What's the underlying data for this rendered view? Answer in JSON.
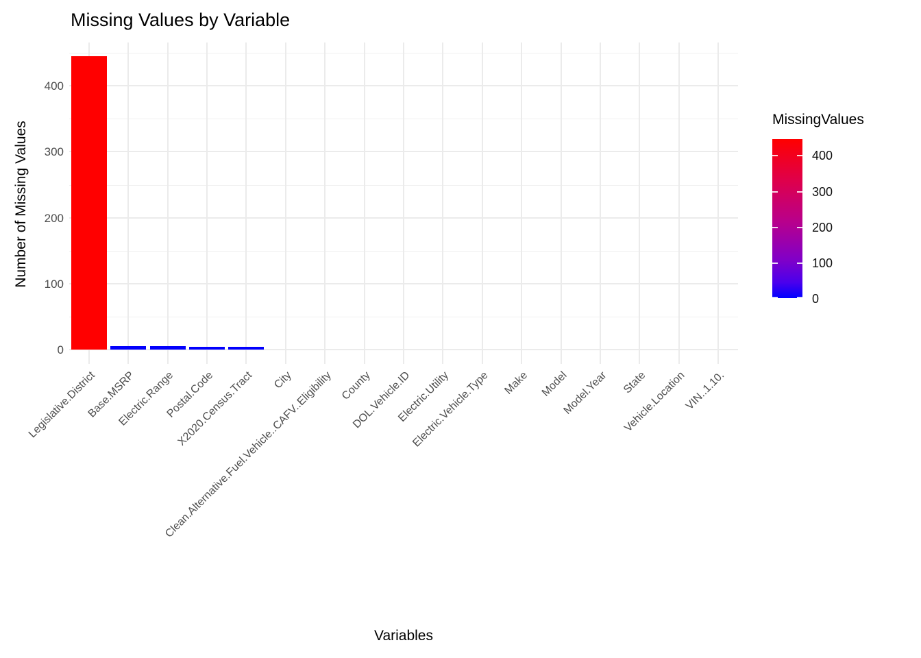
{
  "title": "Missing Values by Variable",
  "axes": {
    "x_title": "Variables",
    "y_title": "Number of Missing Values",
    "y_tick_labels": [
      "0",
      "100",
      "200",
      "300",
      "400"
    ]
  },
  "legend": {
    "title": "MissingValues",
    "tick_labels": [
      "400",
      "300",
      "200",
      "100",
      "0"
    ],
    "tick_values": [
      400,
      300,
      200,
      100,
      0
    ],
    "gradient_high_color": "#FF0000",
    "gradient_low_color": "#0000FF",
    "position": "right"
  },
  "colors": {
    "bar_high": "#FF0000",
    "bar_low": "#0000FF",
    "grid_major": "#EBEBEB",
    "grid_minor": "#F0F0F0",
    "axis_text": "#4D4D4D",
    "title_text": "#000000",
    "background": "#FFFFFF"
  },
  "chart_data": {
    "type": "bar",
    "title": "Missing Values by Variable",
    "xlabel": "Variables",
    "ylabel": "Number of Missing Values",
    "legend_title": "MissingValues",
    "legend_position": "right",
    "grid": true,
    "ylim": [
      0,
      467
    ],
    "yticks": [
      0,
      100,
      200,
      300,
      400
    ],
    "yticks_minor": [
      50,
      150,
      250,
      350,
      450
    ],
    "fill_scale": {
      "low": "#0000FF",
      "high": "#FF0000",
      "domain": [
        0,
        445
      ]
    },
    "categories": [
      "Legislative.District",
      "Base.MSRP",
      "Electric.Range",
      "Postal.Code",
      "X2020.Census.Tract",
      "City",
      "Clean.Alternative.Fuel.Vehicle..CAFV..Eligibility",
      "County",
      "DOL.Vehicle.ID",
      "Electric.Utility",
      "Electric.Vehicle.Type",
      "Make",
      "Model",
      "Model.Year",
      "State",
      "Vehicle.Location",
      "VIN..1.10."
    ],
    "values": [
      445,
      5,
      5,
      4,
      4,
      0,
      0,
      0,
      0,
      0,
      0,
      0,
      0,
      0,
      0,
      0,
      0
    ]
  }
}
